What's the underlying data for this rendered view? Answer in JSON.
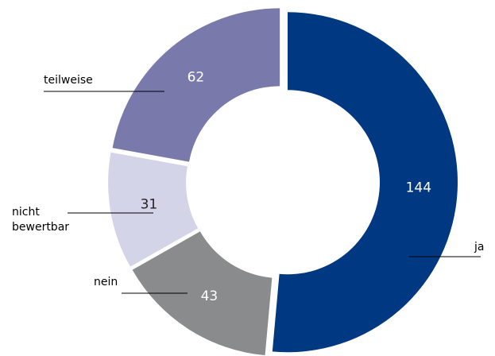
{
  "chart_data": {
    "type": "donut",
    "categories": [
      "ja",
      "nein",
      "nicht bewertbar",
      "teilweise"
    ],
    "values": [
      144,
      43,
      31,
      62
    ],
    "colors": [
      "#003882",
      "#898b8d",
      "#d4d4e8",
      "#7a79ac"
    ]
  }
}
